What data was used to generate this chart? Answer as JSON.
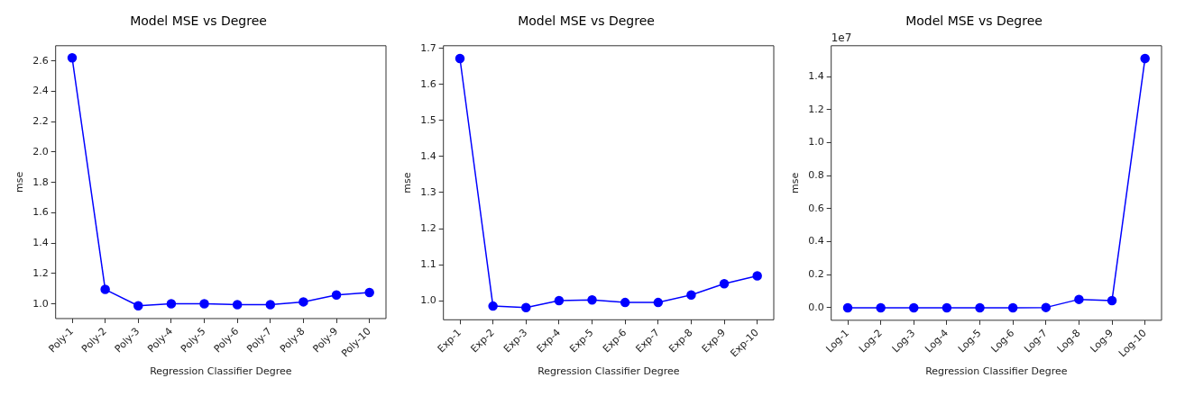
{
  "chart_data": [
    {
      "type": "line",
      "title": "Model MSE vs Degree",
      "xlabel": "Regression Classifier Degree",
      "ylabel": "mse",
      "categories": [
        "Poly-1",
        "Poly-2",
        "Poly-3",
        "Poly-4",
        "Poly-5",
        "Poly-6",
        "Poly-7",
        "Poly-8",
        "Poly-9",
        "Poly-10"
      ],
      "series": [
        {
          "color": "#0000ff",
          "values": [
            2.62,
            1.096,
            0.988,
            1.002,
            1.002,
            0.996,
            0.996,
            1.014,
            1.059,
            1.076
          ]
        }
      ],
      "ylim": [
        0.904,
        2.7
      ],
      "yticks": [
        {
          "value": 1,
          "label": "1.0"
        },
        1.2,
        1.4,
        1.6,
        1.8,
        {
          "value": 2,
          "label": "2.0"
        },
        2.2,
        2.4,
        2.6
      ],
      "grid": false,
      "legend": false,
      "marker": "circle",
      "line_style": "solid"
    },
    {
      "type": "line",
      "title": "Model MSE vs Degree",
      "xlabel": "Regression Classifier Degree",
      "ylabel": "mse",
      "categories": [
        "Exp-1",
        "Exp-2",
        "Exp-3",
        "Exp-4",
        "Exp-5",
        "Exp-6",
        "Exp-7",
        "Exp-8",
        "Exp-9",
        "Exp-10"
      ],
      "series": [
        {
          "color": "#0000ff",
          "values": [
            1.672,
            0.985,
            0.981,
            1.0,
            1.002,
            0.995,
            0.995,
            1.016,
            1.047,
            1.069
          ]
        }
      ],
      "ylim": [
        0.947,
        1.7075
      ],
      "yticks": [
        {
          "value": 1,
          "label": "1.0"
        },
        1.1,
        1.2,
        1.3,
        1.4,
        1.5,
        1.6,
        1.7
      ],
      "grid": false,
      "legend": false,
      "marker": "circle",
      "line_style": "solid"
    },
    {
      "type": "line",
      "title": "Model MSE vs Degree",
      "xlabel": "Regression Classifier Degree",
      "ylabel": "mse",
      "annotations": [
        "1e7"
      ],
      "categories": [
        "Log-1",
        "Log-2",
        "Log-3",
        "Log-4",
        "Log-5",
        "Log-6",
        "Log-7",
        "Log-8",
        "Log-9",
        "Log-10"
      ],
      "series": [
        {
          "color": "#0000ff",
          "values": [
            0,
            0,
            0,
            0,
            0,
            0,
            0.002,
            0.051,
            0.044,
            1.51
          ]
        }
      ],
      "ylim": [
        -0.0756,
        1.587
      ],
      "yticks": [
        {
          "value": 0,
          "label": "0.0"
        },
        0.2,
        0.4,
        0.6,
        0.8,
        {
          "value": 1,
          "label": "1.0"
        },
        1.2,
        1.4
      ],
      "grid": false,
      "legend": false,
      "marker": "circle",
      "line_style": "solid"
    }
  ]
}
